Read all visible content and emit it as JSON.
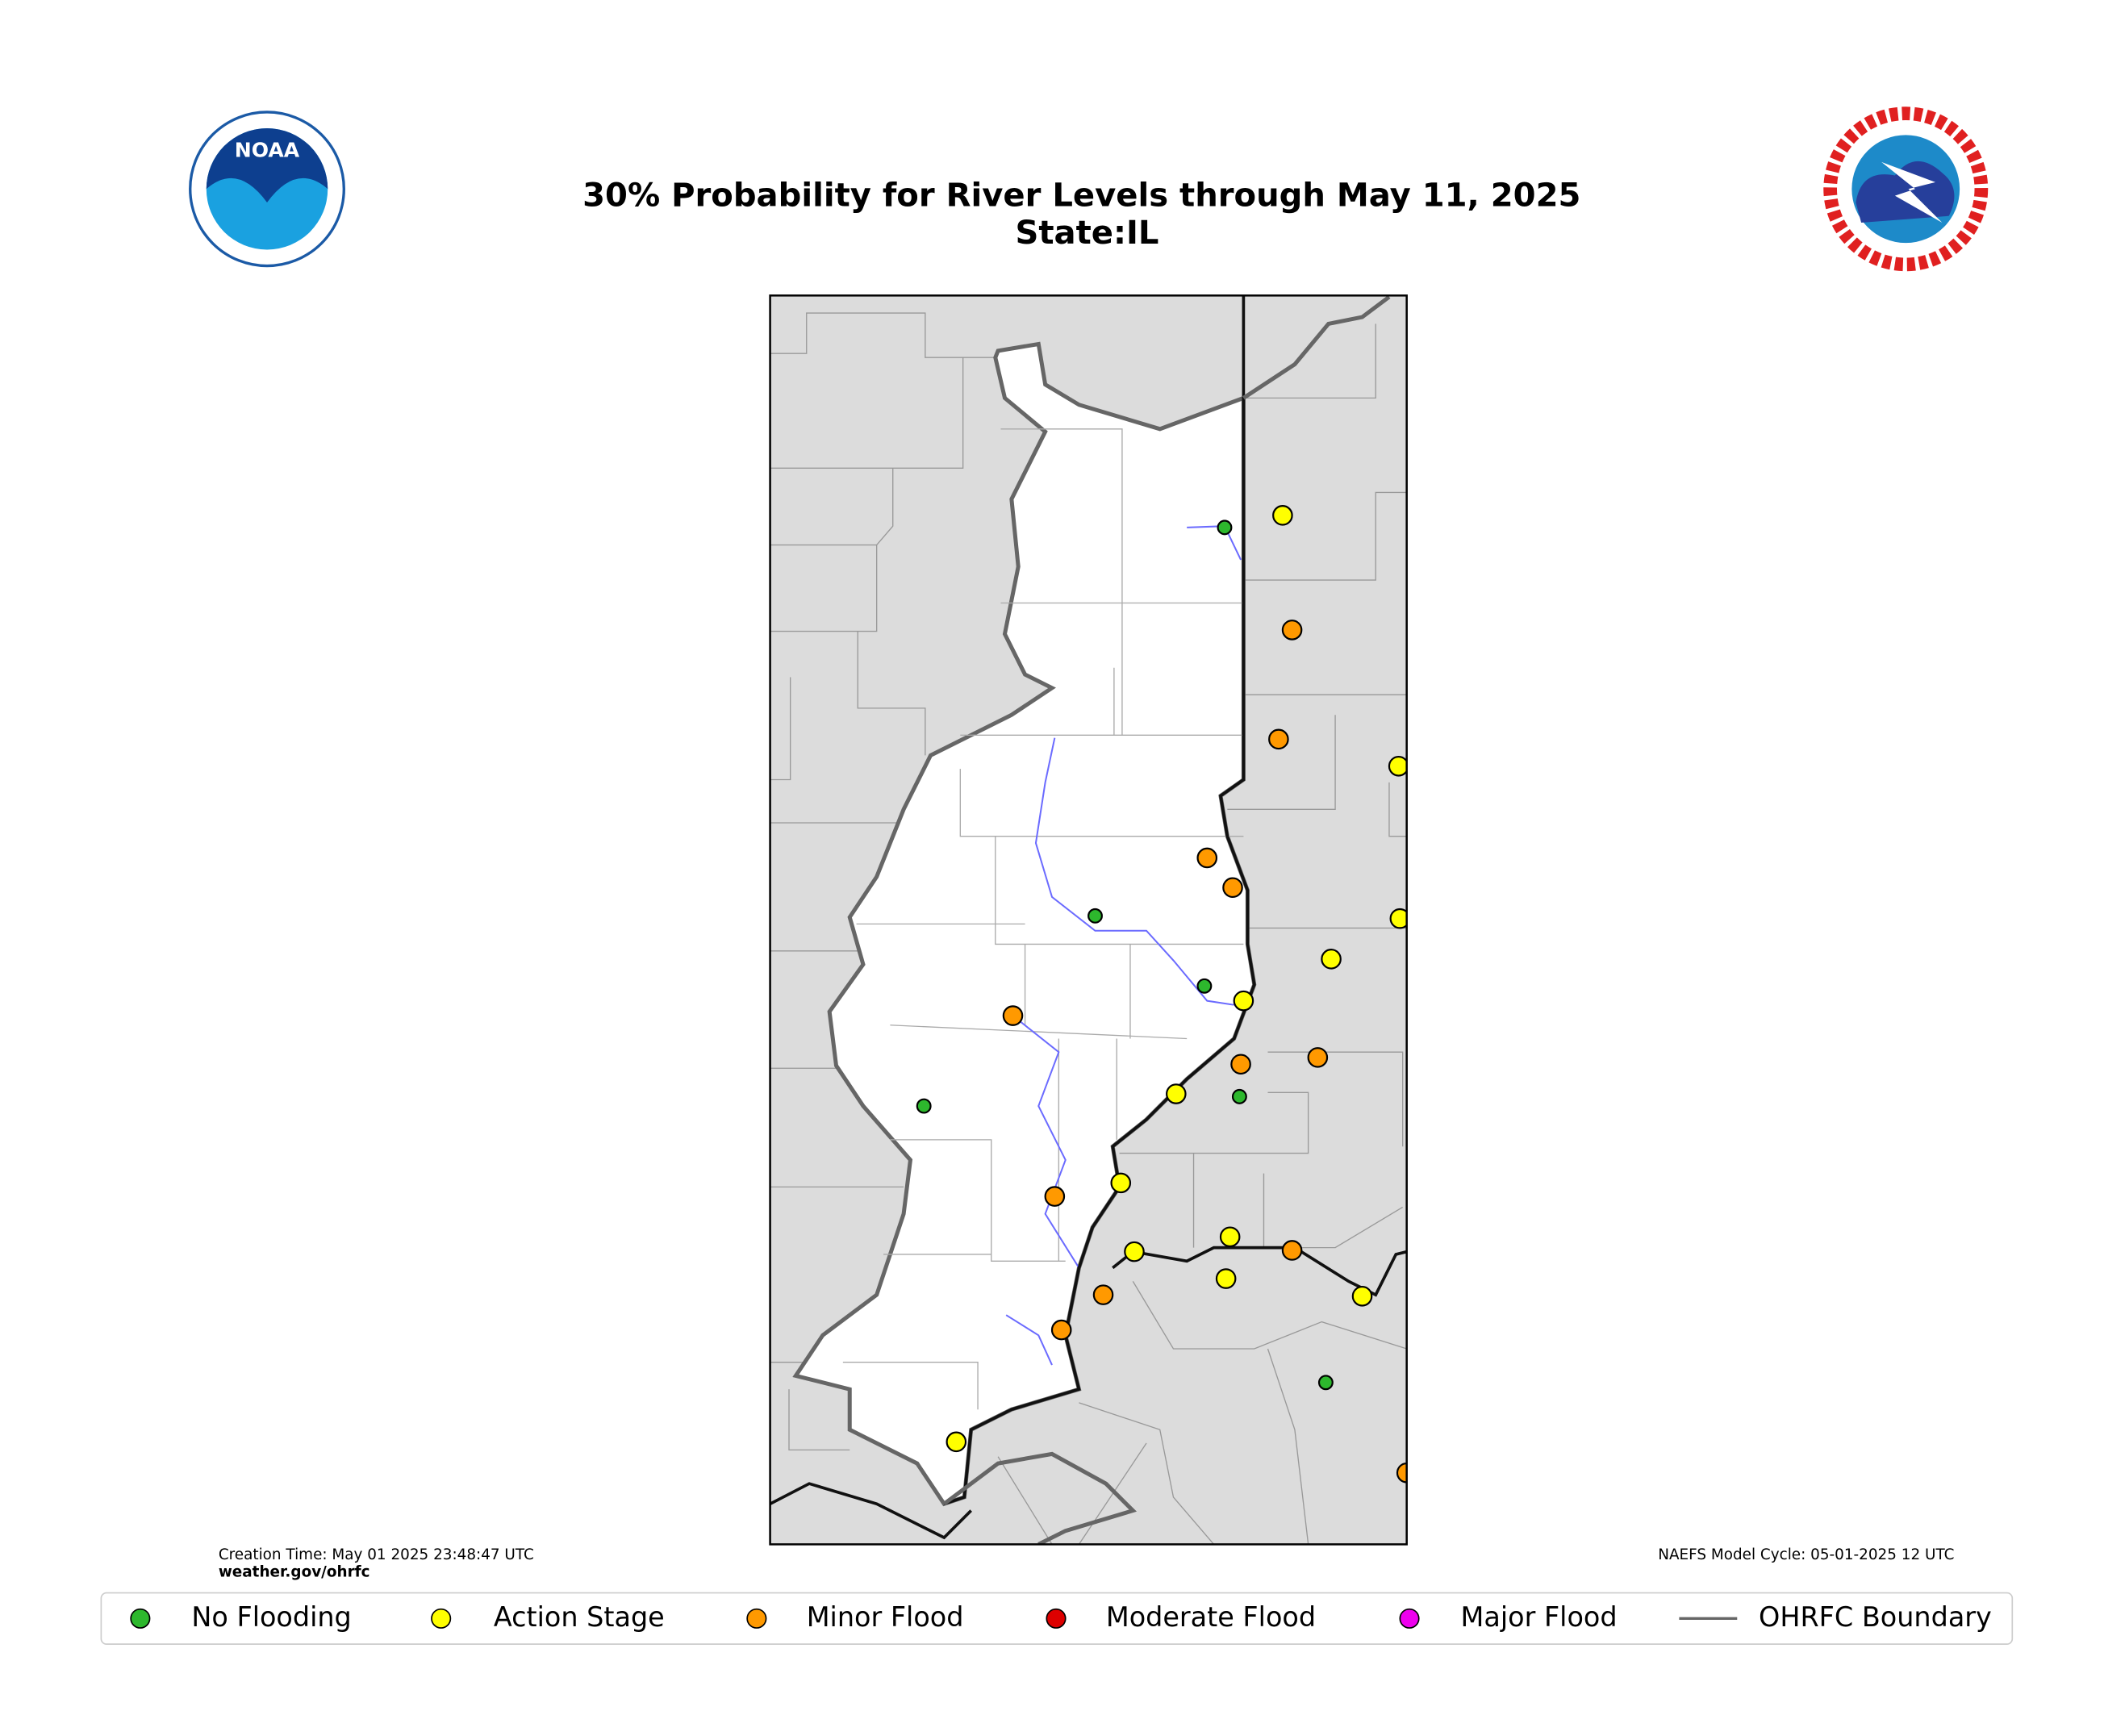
{
  "header": {
    "title": "30% Probability for River Levels through May 11, 2025",
    "subtitle": "State:IL"
  },
  "logos": {
    "noaa": "NOAA"
  },
  "footer": {
    "creation_time": "Creation Time: May 01 2025 23:48:47 UTC",
    "website": "weather.gov/ohrfc",
    "model_cycle": "NAEFS Model Cycle: 05-01-2025 12 UTC"
  },
  "legend": [
    {
      "label": "No Flooding",
      "color": "#2db82d"
    },
    {
      "label": "Action Stage",
      "color": "#ffff00"
    },
    {
      "label": "Minor Flood",
      "color": "#ff9900"
    },
    {
      "label": "Moderate Flood",
      "color": "#dd0000"
    },
    {
      "label": "Major Flood",
      "color": "#ee00ee"
    },
    {
      "label": "OHRFC Boundary",
      "color": "#666666"
    }
  ]
}
